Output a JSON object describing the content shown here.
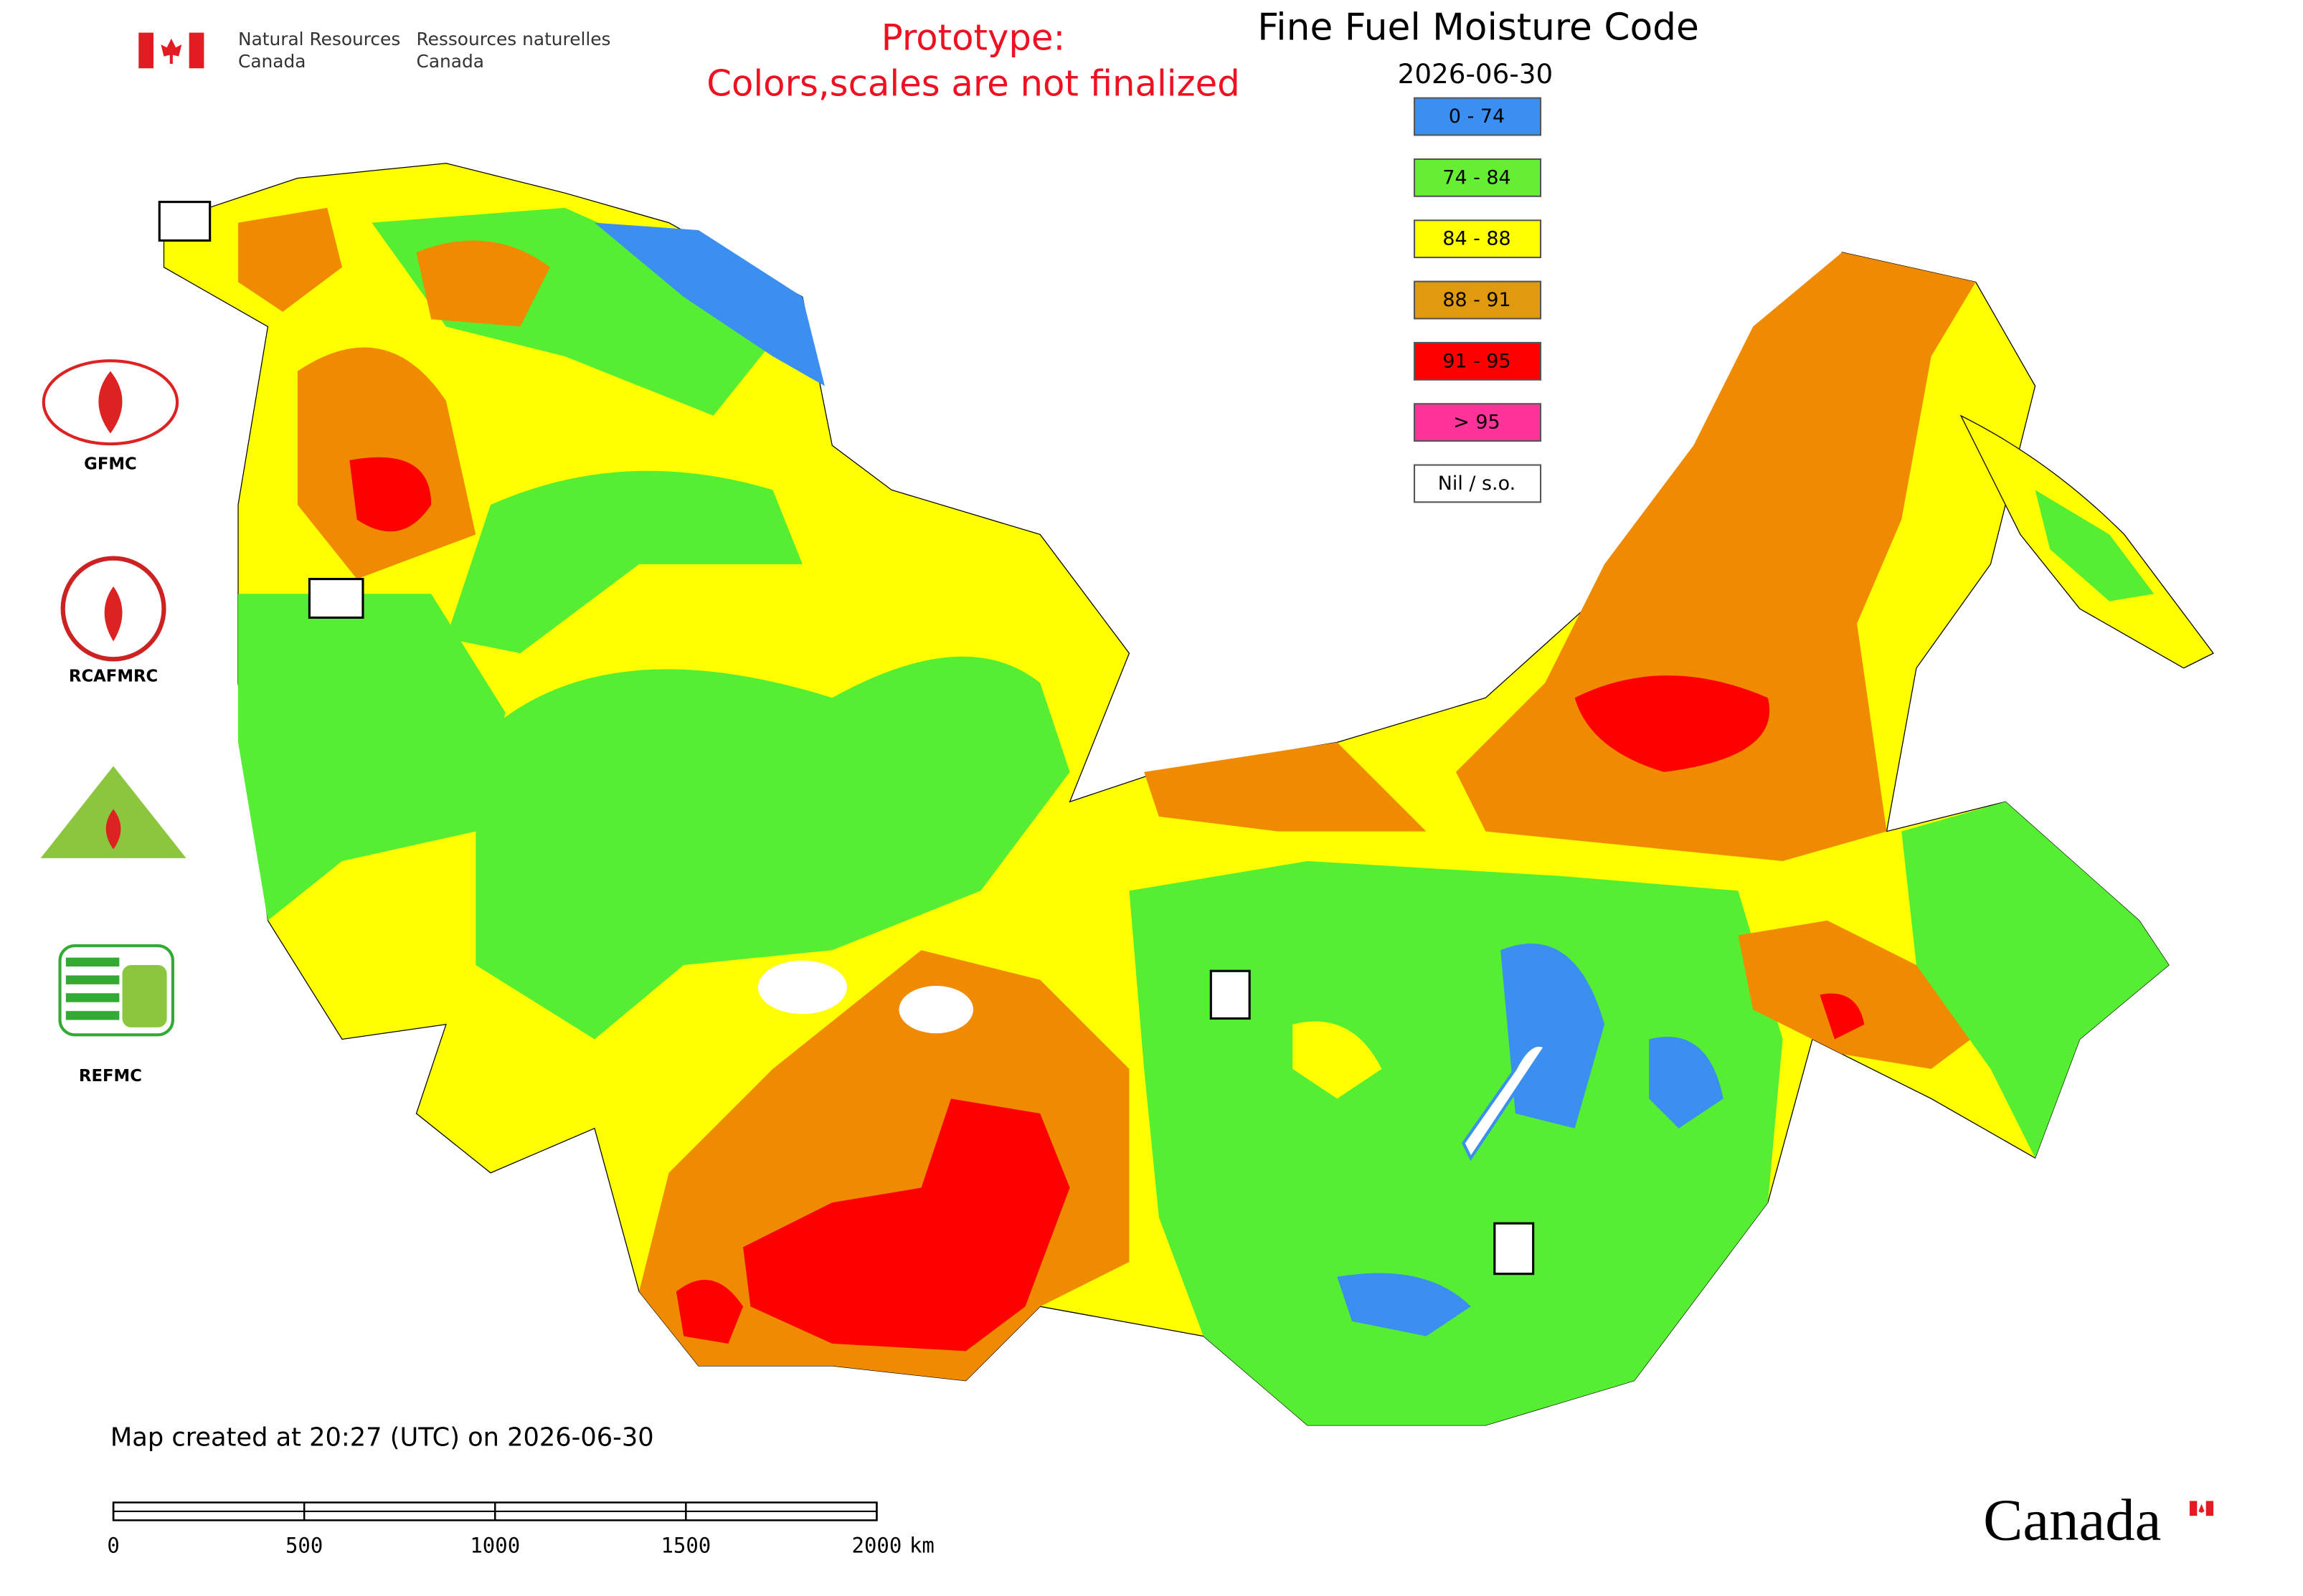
{
  "header": {
    "agency_en": [
      "Natural Resources",
      "Canada"
    ],
    "agency_fr": [
      "Ressources naturelles",
      "Canada"
    ],
    "note": [
      "Prototype:",
      "Colors,scales are not finalized"
    ]
  },
  "title": "Fine Fuel Moisture Code",
  "date": "2026-06-30",
  "legend": [
    {
      "label": "0 - 74",
      "color": "#3b8ff0"
    },
    {
      "label": "74 - 84",
      "color": "#66ee33"
    },
    {
      "label": "84 - 88",
      "color": "#ffff00"
    },
    {
      "label": "88 - 91",
      "color": "#e09a10"
    },
    {
      "label": "91 - 95",
      "color": "#ff0000"
    },
    {
      "label": "> 95",
      "color": "#ff3399"
    },
    {
      "label": "Nil / s.o.",
      "color": "#ffffff"
    }
  ],
  "logos": [
    "GFMC",
    "RCAFMRC",
    "REFMC"
  ],
  "footer": {
    "created": "Map created at 20:27 (UTC) on 2026-06-30",
    "scale_ticks": [
      0,
      500,
      1000,
      1500,
      2000
    ],
    "scale_unit": "km",
    "wordmark": "Canada"
  }
}
